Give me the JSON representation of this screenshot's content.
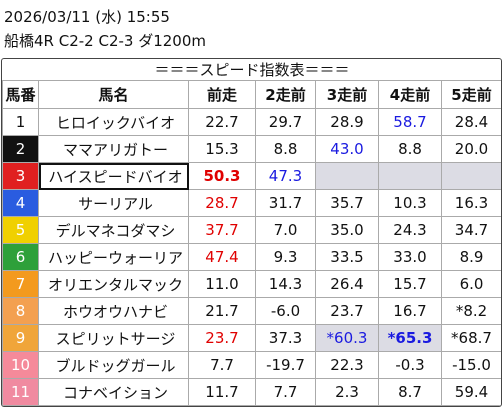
{
  "header": {
    "datetime": "2026/03/11 (水) 15:55",
    "race": "船橋4R C2-2 C2-3 ダ1200m"
  },
  "table": {
    "title": "＝＝＝スピード指数表＝＝＝",
    "columns": [
      "馬番",
      "馬名",
      "前走",
      "2走前",
      "3走前",
      "4走前",
      "5走前"
    ],
    "rows": [
      [
        "1",
        "ヒロイックバイオ",
        "22.7",
        "29.7",
        "28.9",
        "58.7",
        "28.4"
      ],
      [
        "2",
        "ママアリガトー",
        "15.3",
        "8.8",
        "43.0",
        "8.8",
        "20.0"
      ],
      [
        "3",
        "ハイスピードバイオ",
        "50.3",
        "47.3",
        null,
        null,
        null
      ],
      [
        "4",
        "サーリアル",
        "28.7",
        "31.7",
        "35.7",
        "10.3",
        "16.3"
      ],
      [
        "5",
        "デルマネコダマシ",
        "37.7",
        "7.0",
        "35.0",
        "24.3",
        "34.7"
      ],
      [
        "6",
        "ハッピーウォーリア",
        "47.4",
        "9.3",
        "33.5",
        "33.0",
        "8.9"
      ],
      [
        "7",
        "オリエンタルマック",
        "11.0",
        "14.3",
        "26.4",
        "15.7",
        "6.0"
      ],
      [
        "8",
        "ホウオウハナビ",
        "21.7",
        "-6.0",
        "23.7",
        "16.7",
        "*8.2"
      ],
      [
        "9",
        "スピリットサージ",
        "23.7",
        "37.3",
        "*60.3",
        "*65.3",
        "*68.7"
      ],
      [
        "10",
        "ブルドッグガール",
        "7.7",
        "-19.7",
        "22.3",
        "-0.3",
        "-15.0"
      ],
      [
        "11",
        "コナベイション",
        "11.7",
        "7.7",
        "2.3",
        "8.7",
        "59.4"
      ]
    ]
  }
}
